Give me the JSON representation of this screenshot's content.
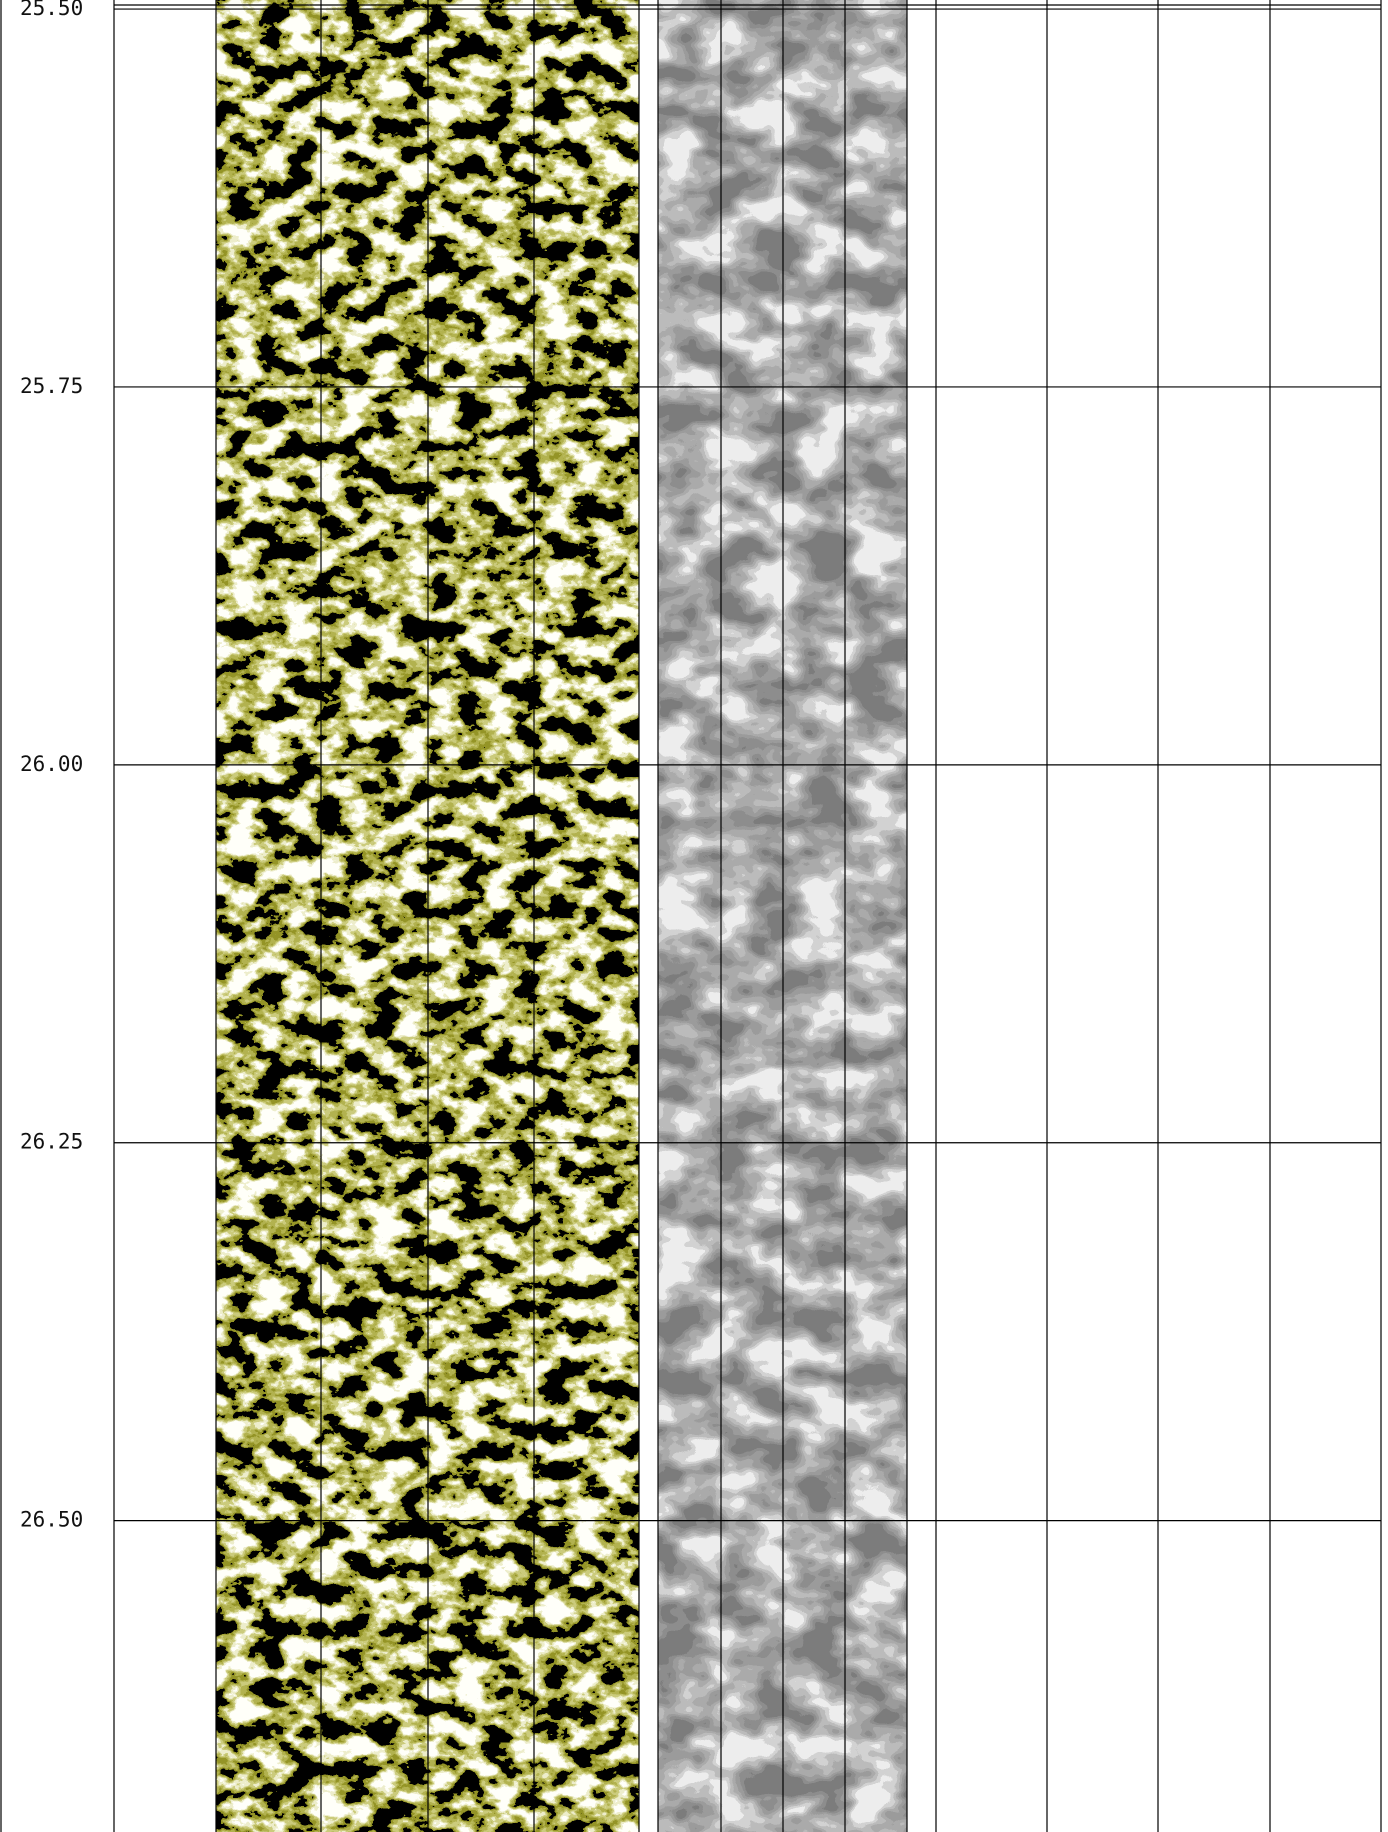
{
  "chart_data": {
    "type": "well-log",
    "ylim": [
      25.494,
      26.706
    ],
    "yticks": [
      {
        "value": 25.5,
        "label": "25.50"
      },
      {
        "value": 25.75,
        "label": "25.75"
      },
      {
        "value": 26.0,
        "label": "26.00"
      },
      {
        "value": 26.25,
        "label": "26.25"
      },
      {
        "value": 26.5,
        "label": "26.50"
      }
    ],
    "grid": true
  }
}
